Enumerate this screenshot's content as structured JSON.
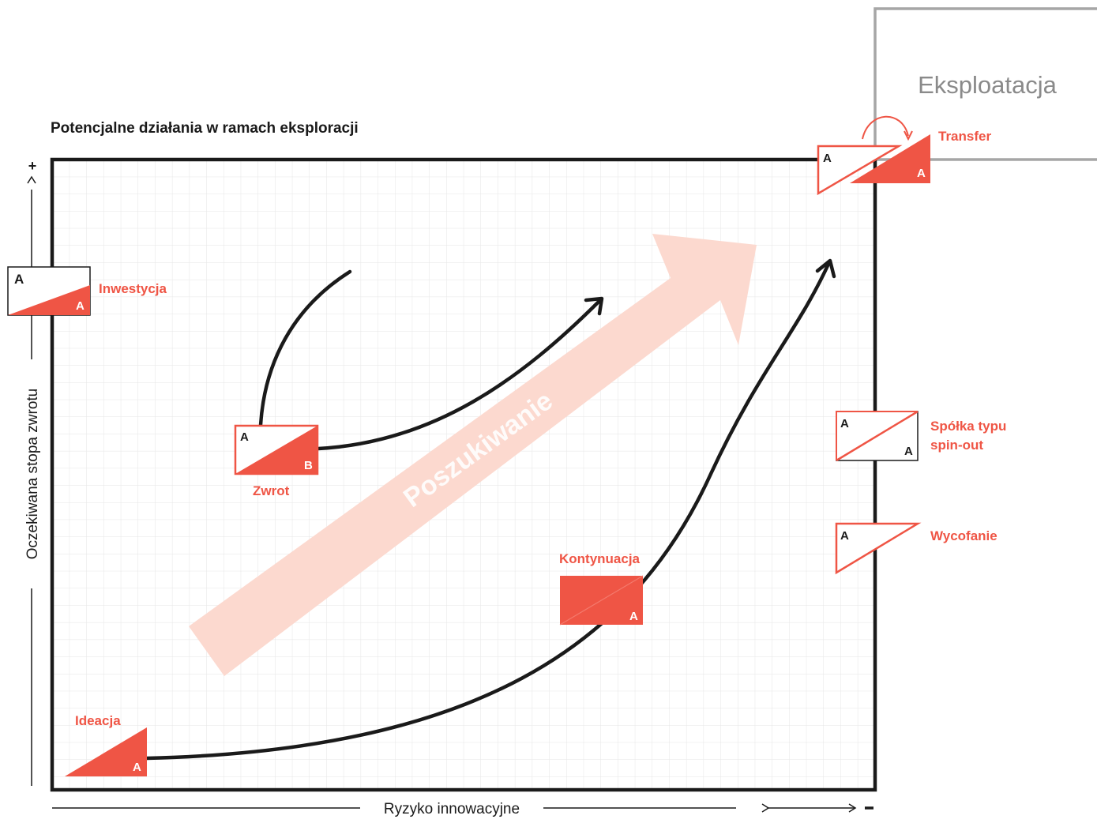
{
  "title": "Potencjalne działania w ramach eksploracji",
  "exploitation_label": "Eksploatacja",
  "axes": {
    "y_label": "Oczekiwana stopa zwrotu",
    "y_plus": "+",
    "x_label": "Ryzyko innowacyjne",
    "x_minus": "-"
  },
  "big_arrow_label": "Poszukiwanie",
  "nodes": {
    "transfer": {
      "label": "Transfer",
      "top_letter": "A",
      "bottom_letter": "A"
    },
    "inwestycja": {
      "label": "Inwestycja",
      "top_letter": "A",
      "bottom_letter": "A"
    },
    "zwrot": {
      "label": "Zwrot",
      "top_letter": "A",
      "bottom_letter": "B"
    },
    "spinout": {
      "label_line1": "Spółka typu",
      "label_line2": "spin-out",
      "top_letter": "A",
      "bottom_letter": "A"
    },
    "wycofanie": {
      "label": "Wycofanie",
      "top_letter": "A"
    },
    "kontynuacja": {
      "label": "Kontynuacja",
      "bottom_letter": "A"
    },
    "ideacja": {
      "label": "Ideacja",
      "bottom_letter": "A"
    }
  },
  "colors": {
    "accent": "#ef5545",
    "arrow_fill": "#fcd9cf",
    "frame": "#1a1a1a",
    "grid": "#e3e3e3",
    "exploitation_border": "#a6a6a6"
  }
}
